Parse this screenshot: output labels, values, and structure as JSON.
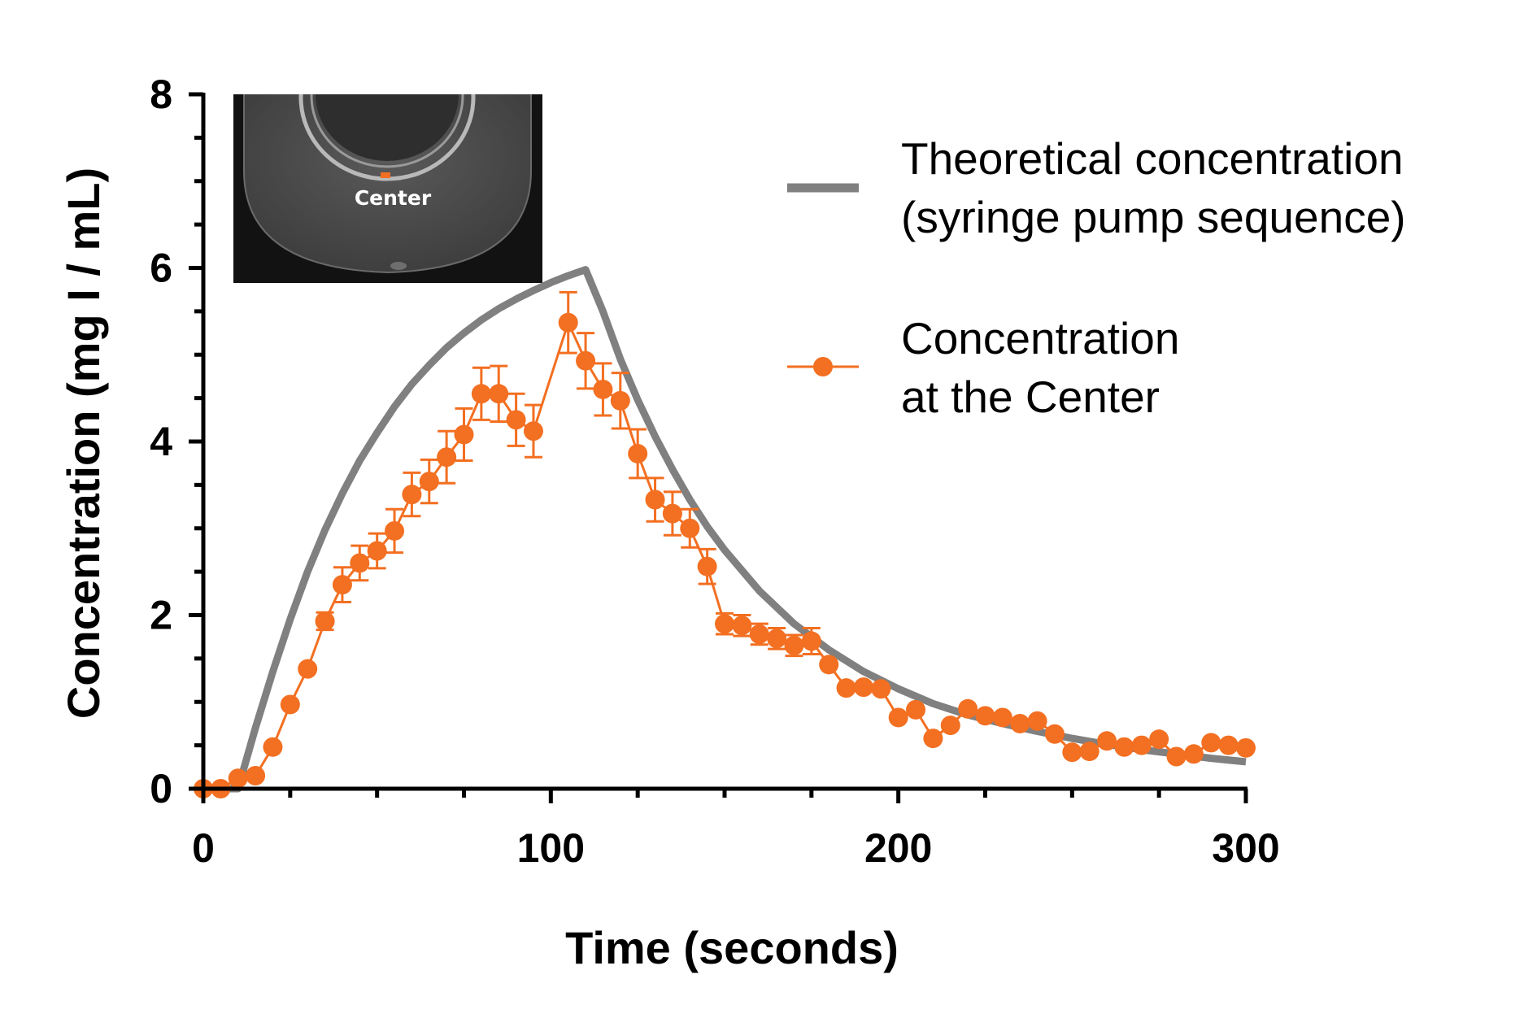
{
  "chart_data": {
    "type": "line",
    "xlabel": "Time (seconds)",
    "ylabel": "Concentration (mg I / mL)",
    "xlim": [
      0,
      300
    ],
    "ylim": [
      0,
      8
    ],
    "x_ticks": [
      0,
      100,
      200,
      300
    ],
    "y_ticks": [
      0,
      2,
      4,
      6,
      8
    ],
    "grid": false,
    "legend_position": "right",
    "series": [
      {
        "name": "Theoretical concentration\n(syringe pump sequence)",
        "name_lines": [
          "Theoretical concentration",
          "(syringe pump sequence)"
        ],
        "color": "#808080",
        "style": "line",
        "x": [
          0,
          10,
          15,
          20,
          25,
          30,
          35,
          40,
          45,
          50,
          55,
          60,
          65,
          70,
          75,
          80,
          85,
          90,
          95,
          100,
          105,
          110,
          115,
          120,
          125,
          130,
          135,
          140,
          145,
          150,
          160,
          170,
          180,
          190,
          200,
          210,
          220,
          230,
          240,
          250,
          260,
          270,
          280,
          290,
          300
        ],
        "y": [
          0,
          0,
          0.7,
          1.35,
          1.95,
          2.5,
          2.98,
          3.4,
          3.78,
          4.1,
          4.4,
          4.66,
          4.88,
          5.08,
          5.25,
          5.4,
          5.53,
          5.64,
          5.74,
          5.83,
          5.91,
          5.98,
          5.5,
          4.95,
          4.48,
          4.06,
          3.68,
          3.33,
          3.02,
          2.75,
          2.28,
          1.9,
          1.6,
          1.35,
          1.15,
          0.98,
          0.85,
          0.75,
          0.66,
          0.58,
          0.51,
          0.45,
          0.4,
          0.35,
          0.31
        ]
      },
      {
        "name": "Concentration\nat the Center",
        "name_lines": [
          "Concentration",
          "at the Center"
        ],
        "color": "#f36f21",
        "style": "line-marker",
        "x": [
          0,
          5,
          10,
          15,
          20,
          25,
          30,
          35,
          40,
          45,
          50,
          55,
          60,
          65,
          70,
          75,
          80,
          85,
          90,
          95,
          105,
          110,
          115,
          120,
          125,
          130,
          135,
          140,
          145,
          150,
          155,
          160,
          165,
          170,
          175,
          180,
          185,
          190,
          195,
          200,
          205,
          210,
          215,
          220,
          225,
          230,
          235,
          240,
          245,
          250,
          255,
          260,
          265,
          270,
          275,
          280,
          285,
          290,
          295,
          300
        ],
        "y": [
          0,
          0,
          0.12,
          0.15,
          0.48,
          0.97,
          1.38,
          1.93,
          2.35,
          2.6,
          2.74,
          2.97,
          3.39,
          3.54,
          3.82,
          4.08,
          4.55,
          4.55,
          4.25,
          4.12,
          5.37,
          4.93,
          4.6,
          4.47,
          3.86,
          3.33,
          3.17,
          3.0,
          2.56,
          1.9,
          1.88,
          1.78,
          1.73,
          1.65,
          1.7,
          1.43,
          1.16,
          1.17,
          1.15,
          0.82,
          0.91,
          0.58,
          0.73,
          0.92,
          0.84,
          0.82,
          0.75,
          0.78,
          0.63,
          0.42,
          0.43,
          0.55,
          0.48,
          0.5,
          0.57,
          0.37,
          0.4,
          0.53,
          0.5,
          0.47
        ],
        "err": [
          0,
          0,
          0,
          0,
          0,
          0,
          0,
          0.1,
          0.2,
          0.2,
          0.2,
          0.25,
          0.25,
          0.25,
          0.3,
          0.3,
          0.3,
          0.32,
          0.3,
          0.3,
          0.35,
          0.32,
          0.3,
          0.32,
          0.28,
          0.25,
          0.25,
          0.22,
          0.2,
          0.12,
          0.12,
          0.12,
          0.12,
          0.12,
          0.15,
          0,
          0,
          0,
          0,
          0,
          0,
          0,
          0,
          0,
          0,
          0,
          0,
          0,
          0,
          0,
          0,
          0,
          0,
          0,
          0,
          0,
          0,
          0,
          0,
          0
        ]
      }
    ],
    "inset": {
      "label": "Center",
      "marker_color": "#f36f21"
    }
  }
}
